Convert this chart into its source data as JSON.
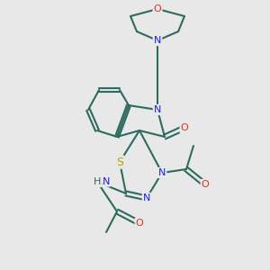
{
  "bg_color": "#e8e8e8",
  "bond_color": "#2d6b5e",
  "bond_width": 1.5,
  "atom_colors": {
    "N": "#2020e0",
    "O": "#e03020",
    "S": "#b8a000",
    "H": "#2d6b5e",
    "C": "#2d6b5e"
  },
  "font_size": 8,
  "figsize": [
    3.0,
    3.0
  ],
  "dpi": 100
}
